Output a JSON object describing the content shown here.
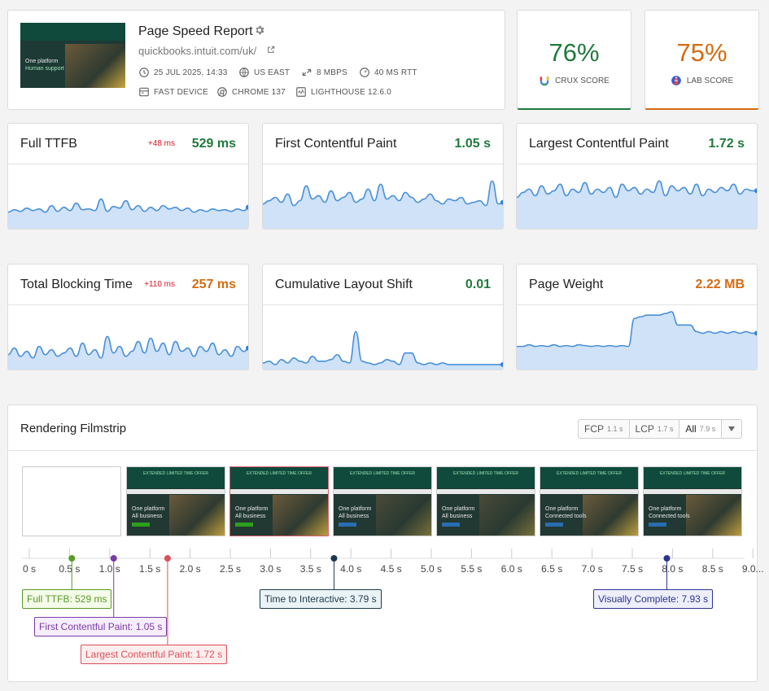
{
  "header": {
    "title": "Page Speed Report",
    "url": "quickbooks.intuit.com/uk/",
    "thumb_line1": "One platform",
    "thumb_line2": "Human support",
    "meta": {
      "date": "25 JUL 2025, 14:33",
      "location": "US EAST",
      "bandwidth": "8 MBPS",
      "rtt": "40 MS RTT",
      "device": "FAST DEVICE",
      "browser": "CHROME 137",
      "lighthouse": "LIGHTHOUSE 12.6.0"
    }
  },
  "scores": {
    "crux": {
      "value": "76%",
      "label": "CRUX SCORE",
      "color": "#1f7a3c"
    },
    "lab": {
      "value": "75%",
      "label": "LAB SCORE",
      "color": "#d46b12"
    }
  },
  "metrics": [
    {
      "title": "Full TTFB",
      "value": "529 ms",
      "delta": "+48 ms",
      "status": "good",
      "series": [
        22,
        25,
        23,
        27,
        24,
        26,
        22,
        30,
        23,
        28,
        24,
        33,
        25,
        26,
        24,
        38,
        23,
        29,
        27,
        36,
        25,
        30,
        23,
        28,
        24,
        30,
        26,
        28,
        24,
        27,
        22,
        25,
        23,
        26,
        24,
        25,
        23,
        26,
        24,
        28
      ]
    },
    {
      "title": "First Contentful Paint",
      "value": "1.05 s",
      "status": "good",
      "series": [
        32,
        36,
        40,
        34,
        44,
        30,
        36,
        54,
        38,
        42,
        34,
        48,
        36,
        40,
        46,
        34,
        38,
        50,
        36,
        56,
        38,
        42,
        36,
        46,
        40,
        34,
        38,
        44,
        36,
        32,
        38,
        36,
        40,
        32,
        34,
        36,
        30,
        60,
        32,
        34
      ]
    },
    {
      "title": "Largest Contentful Paint",
      "value": "1.72 s",
      "status": "good",
      "series": [
        40,
        46,
        50,
        42,
        54,
        44,
        48,
        56,
        42,
        50,
        46,
        58,
        44,
        50,
        46,
        52,
        40,
        56,
        48,
        52,
        44,
        50,
        46,
        60,
        42,
        54,
        48,
        52,
        44,
        56,
        42,
        50,
        46,
        52,
        48,
        56,
        44,
        50,
        48,
        48
      ]
    },
    {
      "title": "Total Blocking Time",
      "value": "257 ms",
      "delta": "+110 ms",
      "status": "warn",
      "series": [
        20,
        28,
        18,
        24,
        16,
        30,
        20,
        26,
        18,
        22,
        28,
        18,
        34,
        20,
        26,
        16,
        42,
        22,
        30,
        18,
        24,
        36,
        22,
        40,
        24,
        34,
        20,
        36,
        24,
        28,
        18,
        30,
        24,
        34,
        20,
        26,
        18,
        30,
        24,
        28
      ]
    },
    {
      "title": "Cumulative Layout Shift",
      "value": "0.01",
      "status": "good",
      "series": [
        10,
        12,
        8,
        14,
        10,
        16,
        12,
        10,
        18,
        12,
        12,
        14,
        20,
        12,
        10,
        48,
        12,
        10,
        8,
        10,
        14,
        12,
        8,
        22,
        22,
        10,
        8,
        10,
        8,
        10,
        8,
        8,
        8,
        8,
        8,
        8,
        8,
        8,
        8,
        8
      ]
    },
    {
      "title": "Page Weight",
      "value": "2.22 MB",
      "status": "warn",
      "series": [
        30,
        30,
        32,
        30,
        31,
        30,
        32,
        30,
        31,
        30,
        32,
        31,
        30,
        31,
        30,
        31,
        30,
        31,
        30,
        64,
        66,
        68,
        68,
        68,
        70,
        72,
        56,
        56,
        56,
        48,
        46,
        48,
        46,
        48,
        46,
        48,
        46,
        48,
        46,
        46
      ]
    }
  ],
  "filmstrip": {
    "title": "Rendering Filmstrip",
    "options": [
      {
        "label": "FCP",
        "value": "1.1 s"
      },
      {
        "label": "LCP",
        "value": "1.7 s"
      },
      {
        "label": "All",
        "value": "7.9 s"
      }
    ],
    "frame_text": [
      "One platform",
      "All business",
      "Connected tools"
    ],
    "offer": "EXTENDED LIMITED TIME OFFER",
    "ticks": [
      "0 s",
      "0.5 s",
      "1.0 s",
      "1.5 s",
      "2.0 s",
      "2.5 s",
      "3.0 s",
      "3.5 s",
      "4.0 s",
      "4.5 s",
      "5.0 s",
      "5.5 s",
      "6.0 s",
      "6.5 s",
      "7.0 s",
      "7.5 s",
      "8.0 s",
      "8.5 s",
      "9.0..."
    ],
    "markers": {
      "ttfb": {
        "label": "Full TTFB: 529 ms",
        "color": "#5a9a2a",
        "time": 0.529
      },
      "fcp": {
        "label": "First Contentful Paint: 1.05 s",
        "color": "#7a3aa8",
        "time": 1.05
      },
      "lcp": {
        "label": "Largest Contentful Paint: 1.72 s",
        "color": "#d9505a",
        "time": 1.72
      },
      "tti": {
        "label": "Time to Interactive: 3.79 s",
        "color": "#1e3a4a",
        "time": 3.79
      },
      "vc": {
        "label": "Visually Complete: 7.93 s",
        "color": "#2c3590",
        "time": 7.93
      }
    }
  }
}
